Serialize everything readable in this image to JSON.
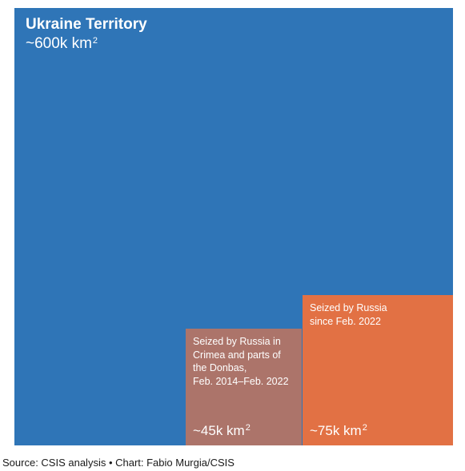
{
  "chart_data": {
    "type": "area",
    "unit": "km²",
    "total": {
      "label": "Ukraine Territory",
      "value": 600000,
      "value_label": "~600k km",
      "color": "#2f75b7"
    },
    "series": [
      {
        "name_lines": [
          "Seized by Russia in",
          "Crimea and parts of",
          "the Donbas,",
          "Feb. 2014–Feb. 2022"
        ],
        "value": 45000,
        "value_label": "~45k km",
        "color": "#ac746a"
      },
      {
        "name_lines": [
          "Seized by Russia",
          "since Feb. 2022"
        ],
        "value": 75000,
        "value_label": "~75k km",
        "color": "#e27144"
      }
    ],
    "superscript": "2"
  },
  "footer": {
    "source": "Source: CSIS analysis • Chart: Fabio Murgia/CSIS"
  }
}
